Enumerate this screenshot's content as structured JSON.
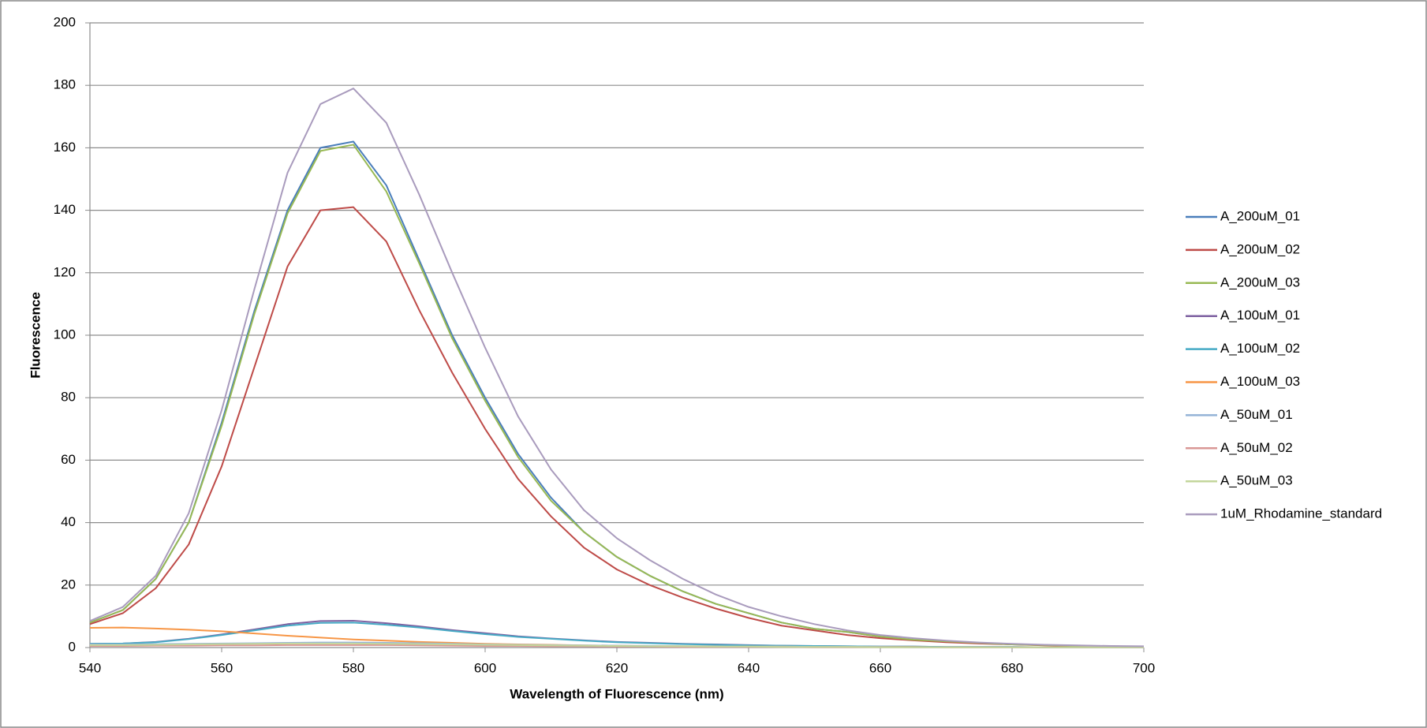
{
  "chart_data": {
    "type": "line",
    "xlabel": "Wavelength of Fluorescence (nm)",
    "ylabel": "Fluorescence",
    "x": [
      540,
      545,
      550,
      555,
      560,
      565,
      570,
      575,
      580,
      585,
      590,
      595,
      600,
      605,
      610,
      615,
      620,
      625,
      630,
      635,
      640,
      645,
      650,
      655,
      660,
      665,
      670,
      675,
      680,
      685,
      690,
      695,
      700
    ],
    "xlim": [
      540,
      700
    ],
    "xticks": [
      540,
      560,
      580,
      600,
      620,
      640,
      660,
      680,
      700
    ],
    "ylim": [
      0,
      200
    ],
    "yticks": [
      0,
      20,
      40,
      60,
      80,
      100,
      120,
      140,
      160,
      180,
      200
    ],
    "grid": true,
    "legend": "right",
    "series": [
      {
        "name": "A_200uM_01",
        "color": "#4a7ebb",
        "values": [
          8,
          12,
          22,
          40,
          72,
          108,
          140,
          160,
          162,
          148,
          124,
          100,
          80,
          62,
          48,
          37,
          29,
          23,
          18,
          14,
          11,
          8,
          6,
          5,
          3.5,
          2.5,
          2,
          1.5,
          1,
          0.8,
          0.6,
          0.4,
          0.3
        ]
      },
      {
        "name": "A_200uM_02",
        "color": "#be4b48",
        "values": [
          7.5,
          11,
          19,
          33,
          58,
          90,
          122,
          140,
          141,
          130,
          108,
          88,
          70,
          54,
          42,
          32,
          25,
          20,
          16,
          12.5,
          9.5,
          7,
          5.5,
          4,
          3,
          2.3,
          1.7,
          1.3,
          1,
          0.7,
          0.5,
          0.4,
          0.3
        ]
      },
      {
        "name": "A_200uM_03",
        "color": "#98b954",
        "values": [
          8,
          12,
          22,
          40,
          71,
          107,
          139,
          159,
          161,
          146,
          123,
          99,
          79,
          61,
          47,
          37,
          29,
          23,
          18,
          14,
          11,
          8,
          6,
          5,
          3.5,
          2.5,
          2,
          1.5,
          1,
          0.8,
          0.6,
          0.4,
          0.3
        ]
      },
      {
        "name": "A_100uM_01",
        "color": "#7d60a0",
        "values": [
          1.2,
          1.3,
          1.8,
          2.8,
          4.2,
          5.8,
          7.5,
          8.5,
          8.6,
          7.8,
          6.8,
          5.6,
          4.6,
          3.6,
          2.9,
          2.3,
          1.8,
          1.5,
          1.2,
          1,
          0.8,
          0.6,
          0.5,
          0.4,
          0.3,
          0.3,
          0.2,
          0.2,
          0.2,
          0.1,
          0.1,
          0.1,
          0.1
        ]
      },
      {
        "name": "A_100uM_02",
        "color": "#46aac5",
        "values": [
          1.2,
          1.3,
          1.7,
          2.7,
          4,
          5.5,
          7,
          7.9,
          8,
          7.3,
          6.4,
          5.3,
          4.3,
          3.4,
          2.8,
          2.2,
          1.7,
          1.4,
          1.1,
          0.9,
          0.7,
          0.6,
          0.5,
          0.4,
          0.3,
          0.3,
          0.2,
          0.2,
          0.2,
          0.1,
          0.1,
          0.1,
          0.1
        ]
      },
      {
        "name": "A_100uM_03",
        "color": "#f79646",
        "values": [
          6.3,
          6.4,
          6.1,
          5.7,
          5.2,
          4.5,
          3.8,
          3.2,
          2.6,
          2.2,
          1.8,
          1.5,
          1.2,
          1,
          0.9,
          0.7,
          0.6,
          0.5,
          0.4,
          0.4,
          0.3,
          0.3,
          0.2,
          0.2,
          0.2,
          0.2,
          0.1,
          0.1,
          0.1,
          0.1,
          0.1,
          0.1,
          0.1
        ]
      },
      {
        "name": "A_50uM_01",
        "color": "#95b3d7",
        "values": [
          1,
          1,
          1.1,
          1.2,
          1.3,
          1.4,
          1.5,
          1.6,
          1.6,
          1.5,
          1.4,
          1.2,
          1,
          0.9,
          0.8,
          0.7,
          0.6,
          0.5,
          0.4,
          0.4,
          0.3,
          0.3,
          0.2,
          0.2,
          0.2,
          0.1,
          0.1,
          0.1,
          0.1,
          0.1,
          0.1,
          0.1,
          0.1
        ]
      },
      {
        "name": "A_50uM_02",
        "color": "#d99795",
        "values": [
          0.5,
          0.5,
          0.6,
          0.6,
          0.7,
          0.7,
          0.8,
          0.8,
          0.8,
          0.8,
          0.7,
          0.6,
          0.5,
          0.5,
          0.4,
          0.4,
          0.3,
          0.3,
          0.2,
          0.2,
          0.2,
          0.2,
          0.1,
          0.1,
          0.1,
          0.1,
          0.1,
          0.1,
          0.1,
          0.1,
          0.1,
          0.1,
          0.1
        ]
      },
      {
        "name": "A_50uM_03",
        "color": "#c3d69b",
        "values": [
          0.8,
          0.8,
          0.9,
          1,
          1.1,
          1.2,
          1.3,
          1.3,
          1.3,
          1.2,
          1.1,
          1,
          0.9,
          0.8,
          0.7,
          0.6,
          0.5,
          0.4,
          0.4,
          0.3,
          0.3,
          0.2,
          0.2,
          0.2,
          0.1,
          0.1,
          0.1,
          0.1,
          0.1,
          0.1,
          0.1,
          0.1,
          0.1
        ]
      },
      {
        "name": "1uM_Rhodamine_standard",
        "color": "#a99bbd",
        "values": [
          8.5,
          13,
          23,
          43,
          76,
          115,
          152,
          174,
          179,
          168,
          145,
          120,
          96,
          74,
          57,
          44,
          35,
          28,
          22,
          17,
          13,
          10,
          7.5,
          5.5,
          4,
          3,
          2.2,
          1.6,
          1.2,
          0.9,
          0.7,
          0.5,
          0.4
        ]
      }
    ]
  }
}
